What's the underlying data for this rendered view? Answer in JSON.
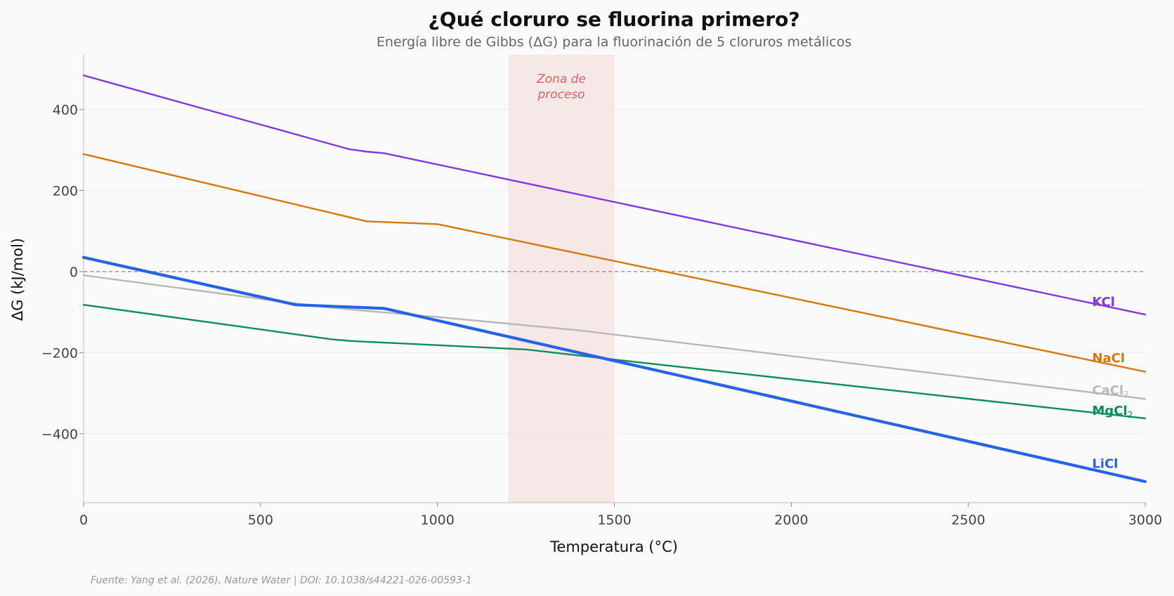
{
  "chart_data": {
    "type": "line",
    "title": "¿Qué cloruro se fluorina primero?",
    "subtitle": "Energía libre de Gibbs (ΔG) para la fluorinación de 5 cloruros metálicos",
    "xlabel": "Temperatura (°C)",
    "ylabel": "ΔG (kJ/mol)",
    "xlim": [
      0,
      3000
    ],
    "ylim": [
      -570,
      535
    ],
    "x_ticks": [
      0,
      500,
      1000,
      1500,
      2000,
      2500,
      3000
    ],
    "x_tick_labels": [
      "0",
      "500",
      "1000",
      "1500",
      "2000",
      "2500",
      "3000"
    ],
    "y_ticks": [
      400,
      200,
      0,
      -200,
      -400
    ],
    "y_tick_labels": [
      "400",
      "200",
      "0",
      "−200",
      "−400"
    ],
    "grid": "horizontal",
    "reference_line": 0,
    "shaded_region": {
      "x_range": [
        1200,
        1500
      ],
      "label": "Zona de proceso",
      "label_lines": [
        "Zona de",
        "proceso"
      ],
      "color": "#f5e1e1",
      "text_color": "#e06060"
    },
    "series": [
      {
        "name": "KCl",
        "label_parts": [
          "KCl",
          ""
        ],
        "color": "#8338e0",
        "width": 2.4,
        "x": [
          0,
          750,
          800,
          850,
          3000
        ],
        "y": [
          484,
          302,
          296,
          292,
          -106
        ]
      },
      {
        "name": "NaCl",
        "label_parts": [
          "NaCl",
          ""
        ],
        "color": "#d97706",
        "width": 2.4,
        "x": [
          0,
          800,
          1000,
          3000
        ],
        "y": [
          290,
          124,
          117,
          -247
        ]
      },
      {
        "name": "CaCl₂",
        "label_parts": [
          "CaCl",
          "2"
        ],
        "color": "#b8b8b8",
        "width": 2.4,
        "x": [
          0,
          600,
          700,
          800,
          1000,
          1400,
          3000
        ],
        "y": [
          -9,
          -79,
          -89,
          -97,
          -112,
          -145,
          -314
        ]
      },
      {
        "name": "MgCl₂",
        "label_parts": [
          "MgCl",
          "2"
        ],
        "color": "#0a8f5c",
        "width": 2.4,
        "x": [
          0,
          700,
          750,
          1250,
          1550,
          3000
        ],
        "y": [
          -82,
          -167,
          -171,
          -192,
          -222,
          -362
        ]
      },
      {
        "name": "LiCl",
        "label_parts": [
          "LiCl",
          ""
        ],
        "color": "#2563e8",
        "width": 4.2,
        "x": [
          0,
          600,
          850,
          3000
        ],
        "y": [
          35,
          -82,
          -91,
          -518
        ]
      }
    ],
    "series_label_y": {
      "KCl": -75,
      "NaCl": -213,
      "CaCl₂": -293,
      "MgCl₂": -343,
      "LiCl": -474
    }
  },
  "source_note": "Fuente: Yang et al. (2026), Nature Water | DOI: 10.1038/s44221-026-00593-1"
}
